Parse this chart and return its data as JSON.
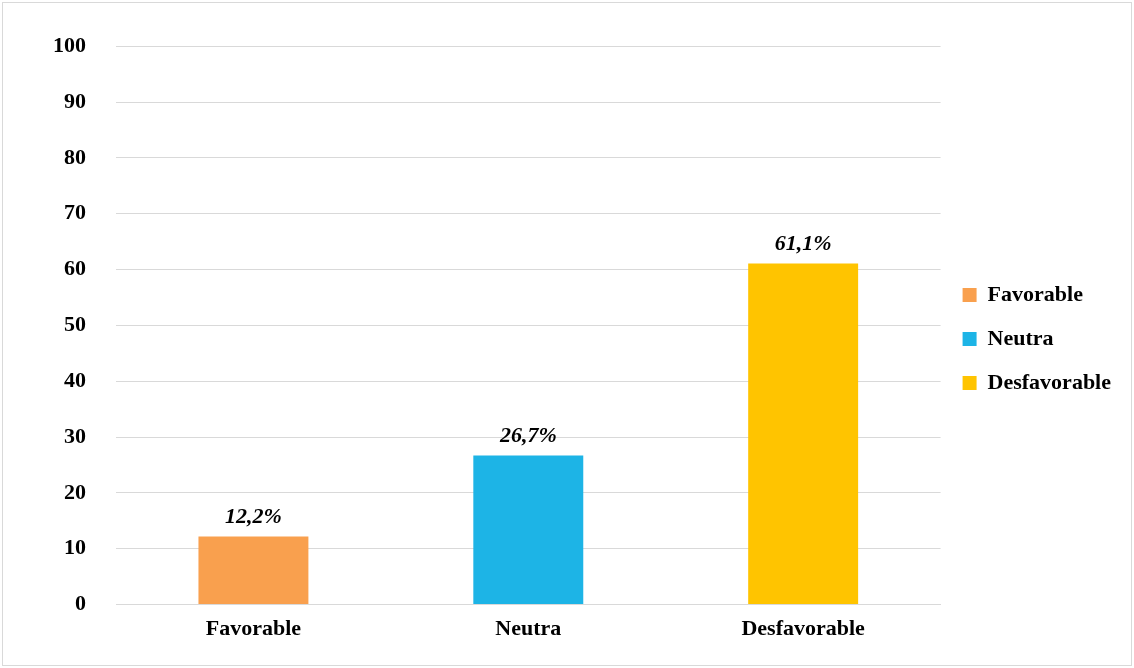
{
  "chart_data": {
    "type": "bar",
    "categories": [
      "Favorable",
      "Neutra",
      "Desfavorable"
    ],
    "series": [
      {
        "name": "Favorable",
        "color": "#f9a04e",
        "values": [
          12.2,
          null,
          null
        ],
        "value_labels": [
          "12,2%",
          null,
          null
        ]
      },
      {
        "name": "Neutra",
        "color": "#1db4e6",
        "values": [
          null,
          26.7,
          null
        ],
        "value_labels": [
          null,
          "26,7%",
          null
        ]
      },
      {
        "name": "Desfavorable",
        "color": "#ffc400",
        "values": [
          null,
          null,
          61.1
        ],
        "value_labels": [
          null,
          null,
          "61,1%"
        ]
      }
    ],
    "ylim": [
      0,
      100
    ],
    "yticks": [
      0,
      10,
      20,
      30,
      40,
      50,
      60,
      70,
      80,
      90,
      100
    ],
    "grid": "y",
    "legend": "right"
  }
}
